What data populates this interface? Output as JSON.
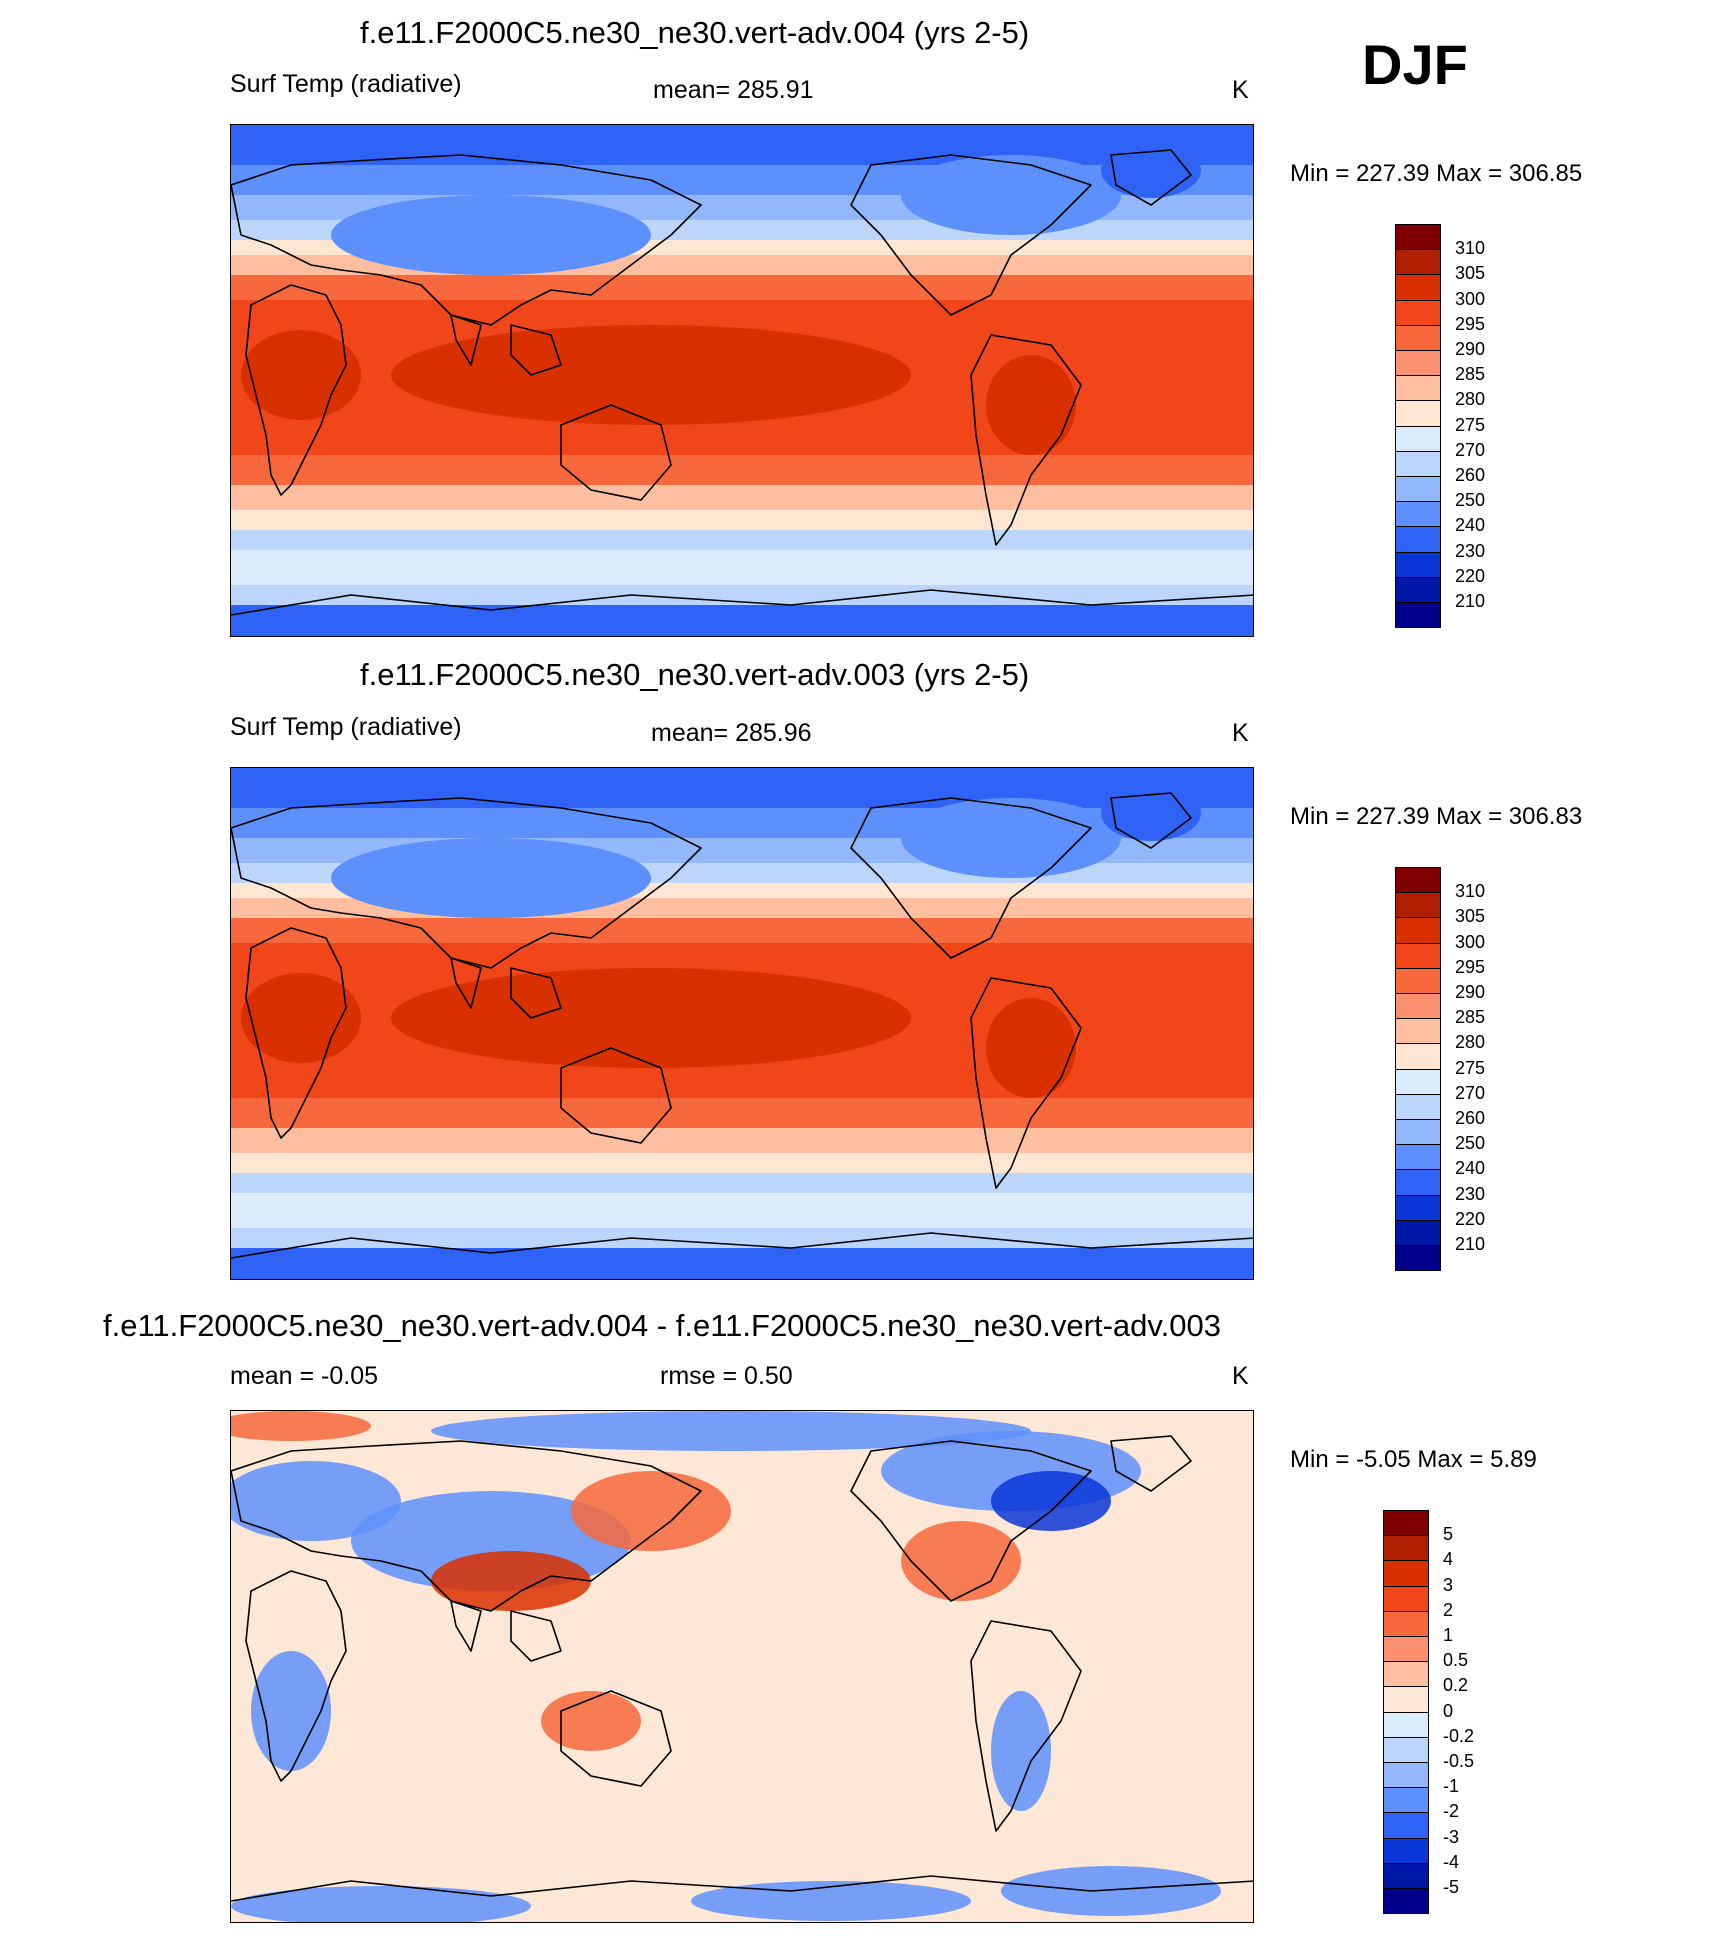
{
  "season": "DJF",
  "panels": [
    {
      "title": "f.e11.F2000C5.ne30_ne30.vert-adv.004 (yrs 2-5)",
      "left_label": "Surf Temp (radiative)",
      "center_label": "mean= 285.91",
      "units": "K",
      "minmax": "Min = 227.39 Max = 306.85",
      "colorbar": {
        "labels": [
          "310",
          "305",
          "300",
          "295",
          "290",
          "285",
          "280",
          "275",
          "270",
          "260",
          "250",
          "240",
          "230",
          "220",
          "210"
        ],
        "colors": [
          "#7f0000",
          "#b01e00",
          "#d93000",
          "#f0461a",
          "#f7683c",
          "#fb9070",
          "#fdbfa0",
          "#fde6d2",
          "#dcebfb",
          "#bcd6fb",
          "#92b8fb",
          "#5e90fb",
          "#2f63f5",
          "#0a36d8",
          "#0018a8",
          "#00008b"
        ]
      }
    },
    {
      "title": "f.e11.F2000C5.ne30_ne30.vert-adv.003 (yrs 2-5)",
      "left_label": "Surf Temp (radiative)",
      "center_label": "mean= 285.96",
      "units": "K",
      "minmax": "Min = 227.39 Max = 306.83",
      "colorbar": {
        "labels": [
          "310",
          "305",
          "300",
          "295",
          "290",
          "285",
          "280",
          "275",
          "270",
          "260",
          "250",
          "240",
          "230",
          "220",
          "210"
        ],
        "colors": [
          "#7f0000",
          "#b01e00",
          "#d93000",
          "#f0461a",
          "#f7683c",
          "#fb9070",
          "#fdbfa0",
          "#fde6d2",
          "#dcebfb",
          "#bcd6fb",
          "#92b8fb",
          "#5e90fb",
          "#2f63f5",
          "#0a36d8",
          "#0018a8",
          "#00008b"
        ]
      }
    },
    {
      "title": "f.e11.F2000C5.ne30_ne30.vert-adv.004 - f.e11.F2000C5.ne30_ne30.vert-adv.003",
      "left_label": "mean =  -0.05",
      "center_label": "rmse =   0.50",
      "units": "K",
      "minmax": "Min =  -5.05 Max =   5.89",
      "colorbar": {
        "labels": [
          "5",
          "4",
          "3",
          "2",
          "1",
          "0.5",
          "0.2",
          "0",
          "-0.2",
          "-0.5",
          "-1",
          "-2",
          "-3",
          "-4",
          "-5"
        ],
        "colors": [
          "#7f0000",
          "#b01e00",
          "#d93000",
          "#f0461a",
          "#f7683c",
          "#fb9070",
          "#fdbfa0",
          "#fde8d8",
          "#dcebfb",
          "#bcd6fb",
          "#92b8fb",
          "#5e90fb",
          "#2f63f5",
          "#0a36d8",
          "#0018a8",
          "#00008b"
        ]
      }
    }
  ],
  "map_colors": {
    "polar": "#2f63f5",
    "subpolar": "#5e90fb",
    "cold": "#92b8fb",
    "cool": "#bcd6fb",
    "chill": "#dcebfb",
    "mild": "#fde6d2",
    "temperate": "#fdbfa0",
    "warm": "#f7683c",
    "hot": "#f0461a",
    "tropical": "#d93000",
    "diff_bg": "#fde8d8",
    "diff_neg": "#5e90fb",
    "diff_neg_strong": "#0a36d8",
    "diff_pos": "#f7683c",
    "diff_pos_strong": "#d93000",
    "coast": "#000000"
  }
}
